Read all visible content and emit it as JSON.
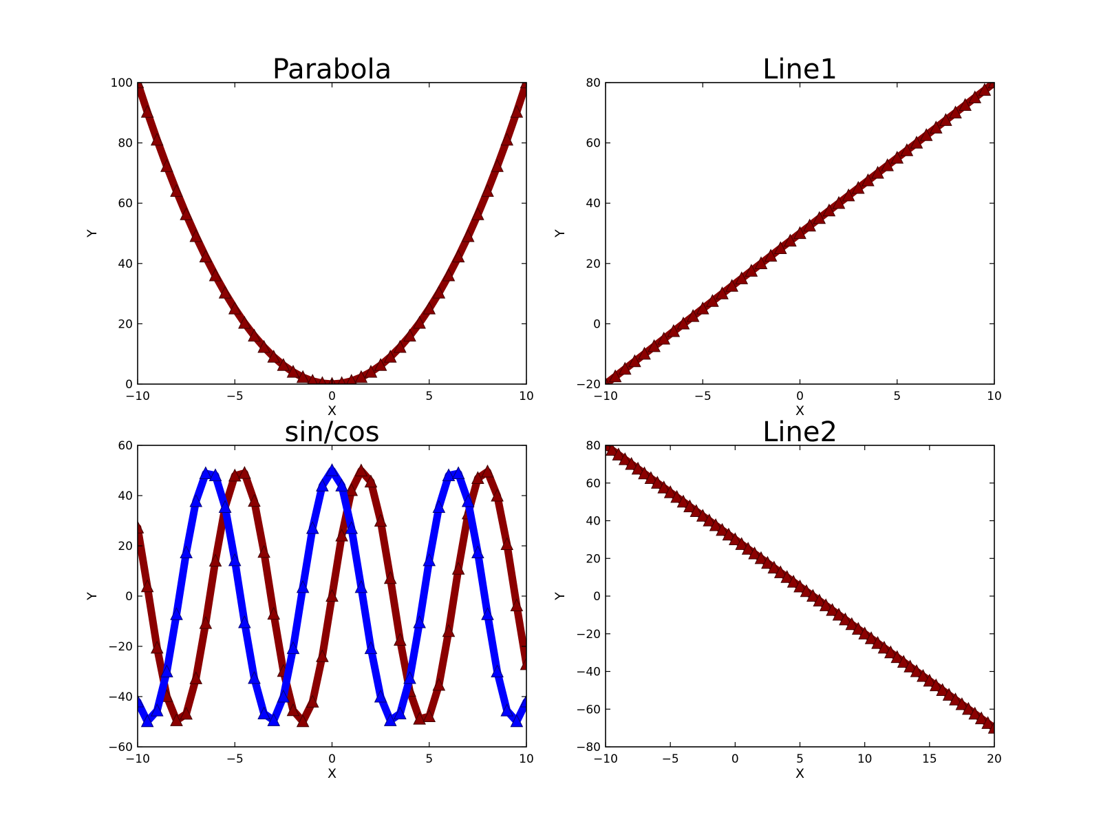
{
  "chart_data": [
    {
      "type": "line",
      "title": "Parabola",
      "xlabel": "X",
      "ylabel": "Y",
      "xlim": [
        -10,
        10
      ],
      "ylim": [
        0,
        100
      ],
      "xticks": [
        -10,
        -5,
        0,
        5,
        10
      ],
      "yticks": [
        0,
        20,
        40,
        60,
        80,
        100
      ],
      "xtick_labels": [
        "−10",
        "−5",
        "0",
        "5",
        "10"
      ],
      "ytick_labels": [
        "0",
        "20",
        "40",
        "60",
        "80",
        "100"
      ],
      "grid": false,
      "marker": "triangle",
      "series": [
        {
          "color": "#8b0000",
          "x": [
            -10,
            -9.5,
            -9,
            -8.5,
            -8,
            -7.5,
            -7,
            -6.5,
            -6,
            -5.5,
            -5,
            -4.5,
            -4,
            -3.5,
            -3,
            -2.5,
            -2,
            -1.5,
            -1,
            -0.5,
            0,
            0.5,
            1,
            1.5,
            2,
            2.5,
            3,
            3.5,
            4,
            4.5,
            5,
            5.5,
            6,
            6.5,
            7,
            7.5,
            8,
            8.5,
            9,
            9.5,
            10
          ],
          "y": [
            100,
            90.25,
            81,
            72.25,
            64,
            56.25,
            49,
            42.25,
            36,
            30.25,
            25,
            20.25,
            16,
            12.25,
            9,
            6.25,
            4,
            2.25,
            1,
            0.25,
            0,
            0.25,
            1,
            2.25,
            4,
            6.25,
            9,
            12.25,
            16,
            20.25,
            25,
            30.25,
            36,
            42.25,
            49,
            56.25,
            64,
            72.25,
            81,
            90.25,
            100
          ]
        }
      ]
    },
    {
      "type": "line",
      "title": "Line1",
      "xlabel": "X",
      "ylabel": "Y",
      "xlim": [
        -10,
        10
      ],
      "ylim": [
        -20,
        80
      ],
      "xticks": [
        -10,
        -5,
        0,
        5,
        10
      ],
      "yticks": [
        -20,
        0,
        20,
        40,
        60,
        80
      ],
      "xtick_labels": [
        "−10",
        "−5",
        "0",
        "5",
        "10"
      ],
      "ytick_labels": [
        "−20",
        "0",
        "20",
        "40",
        "60",
        "80"
      ],
      "grid": false,
      "marker": "triangle",
      "series": [
        {
          "color": "#8b0000",
          "x": [
            -10,
            -9.5,
            -9,
            -8.5,
            -8,
            -7.5,
            -7,
            -6.5,
            -6,
            -5.5,
            -5,
            -4.5,
            -4,
            -3.5,
            -3,
            -2.5,
            -2,
            -1.5,
            -1,
            -0.5,
            0,
            0.5,
            1,
            1.5,
            2,
            2.5,
            3,
            3.5,
            4,
            4.5,
            5,
            5.5,
            6,
            6.5,
            7,
            7.5,
            8,
            8.5,
            9,
            9.5,
            10
          ],
          "y": [
            -20,
            -17.5,
            -15,
            -12.5,
            -10,
            -7.5,
            -5,
            -2.5,
            0,
            2.5,
            5,
            7.5,
            10,
            12.5,
            15,
            17.5,
            20,
            22.5,
            25,
            27.5,
            30,
            32.5,
            35,
            37.5,
            40,
            42.5,
            45,
            47.5,
            50,
            52.5,
            55,
            57.5,
            60,
            62.5,
            65,
            67.5,
            70,
            72.5,
            75,
            77.5,
            80
          ]
        }
      ]
    },
    {
      "type": "line",
      "title": "sin/cos",
      "xlabel": "X",
      "ylabel": "Y",
      "xlim": [
        -10,
        10
      ],
      "ylim": [
        -60,
        60
      ],
      "xticks": [
        -10,
        -5,
        0,
        5,
        10
      ],
      "yticks": [
        -60,
        -40,
        -20,
        0,
        20,
        40,
        60
      ],
      "xtick_labels": [
        "−10",
        "−5",
        "0",
        "5",
        "10"
      ],
      "ytick_labels": [
        "−60",
        "−40",
        "−20",
        "0",
        "20",
        "40",
        "60"
      ],
      "grid": false,
      "marker": "triangle",
      "series": [
        {
          "color": "#8b0000",
          "x": [
            -10,
            -9.5,
            -9,
            -8.5,
            -8,
            -7.5,
            -7,
            -6.5,
            -6,
            -5.5,
            -5,
            -4.5,
            -4,
            -3.5,
            -3,
            -2.5,
            -2,
            -1.5,
            -1,
            -0.5,
            0,
            0.5,
            1,
            1.5,
            2,
            2.5,
            3,
            3.5,
            4,
            4.5,
            5,
            5.5,
            6,
            6.5,
            7,
            7.5,
            8,
            8.5,
            9,
            9.5,
            10
          ],
          "y": [
            27.2,
            3.8,
            -20.6,
            -39.9,
            -49.5,
            -46.9,
            -32.8,
            -10.8,
            14.0,
            35.4,
            47.9,
            48.9,
            37.8,
            17.5,
            -7.1,
            -29.9,
            -45.5,
            -49.9,
            -42.1,
            -24.0,
            0.0,
            24.0,
            42.1,
            49.9,
            45.5,
            29.9,
            7.1,
            -17.5,
            -37.8,
            -48.9,
            -47.9,
            -35.4,
            -14.0,
            10.8,
            32.8,
            46.9,
            49.5,
            39.9,
            20.6,
            -3.8,
            -27.2
          ]
        },
        {
          "color": "#0000ff",
          "x": [
            -10,
            -9.5,
            -9,
            -8.5,
            -8,
            -7.5,
            -7,
            -6.5,
            -6,
            -5.5,
            -5,
            -4.5,
            -4,
            -3.5,
            -3,
            -2.5,
            -2,
            -1.5,
            -1,
            -0.5,
            0,
            0.5,
            1,
            1.5,
            2,
            2.5,
            3,
            3.5,
            4,
            4.5,
            5,
            5.5,
            6,
            6.5,
            7,
            7.5,
            8,
            8.5,
            9,
            9.5,
            10
          ],
          "y": [
            -42.0,
            -49.9,
            -45.6,
            -30.1,
            -7.3,
            17.3,
            37.7,
            48.8,
            48.0,
            35.4,
            14.2,
            -10.5,
            -32.7,
            -46.8,
            -49.5,
            -40.1,
            -20.8,
            3.5,
            27.0,
            43.9,
            50.0,
            43.9,
            27.0,
            3.5,
            -20.8,
            -40.1,
            -49.5,
            -46.8,
            -32.7,
            -10.5,
            14.2,
            35.4,
            48.0,
            48.8,
            37.7,
            17.3,
            -7.3,
            -30.1,
            -45.6,
            -49.9,
            -42.0
          ]
        }
      ]
    },
    {
      "type": "line",
      "title": "Line2",
      "xlabel": "X",
      "ylabel": "Y",
      "xlim": [
        -10,
        20
      ],
      "ylim": [
        -80,
        80
      ],
      "xticks": [
        -10,
        -5,
        0,
        5,
        10,
        15,
        20
      ],
      "yticks": [
        -80,
        -60,
        -40,
        -20,
        0,
        20,
        40,
        60,
        80
      ],
      "xtick_labels": [
        "−10",
        "−5",
        "0",
        "5",
        "10",
        "15",
        "20"
      ],
      "ytick_labels": [
        "−80",
        "−60",
        "−40",
        "−20",
        "0",
        "20",
        "40",
        "60",
        "80"
      ],
      "grid": false,
      "marker": "triangle",
      "series": [
        {
          "color": "#8b0000",
          "x": [
            -10,
            -9.5,
            -9,
            -8.5,
            -8,
            -7.5,
            -7,
            -6.5,
            -6,
            -5.5,
            -5,
            -4.5,
            -4,
            -3.5,
            -3,
            -2.5,
            -2,
            -1.5,
            -1,
            -0.5,
            0,
            0.5,
            1,
            1.5,
            2,
            2.5,
            3,
            3.5,
            4,
            4.5,
            5,
            5.5,
            6,
            6.5,
            7,
            7.5,
            8,
            8.5,
            9,
            9.5,
            10,
            10.5,
            11,
            11.5,
            12,
            12.5,
            13,
            13.5,
            14,
            14.5,
            15,
            15.5,
            16,
            16.5,
            17,
            17.5,
            18,
            18.5,
            19,
            19.5,
            20
          ],
          "y": [
            80,
            77.5,
            75,
            72.5,
            70,
            67.5,
            65,
            62.5,
            60,
            57.5,
            55,
            52.5,
            50,
            47.5,
            45,
            42.5,
            40,
            37.5,
            35,
            32.5,
            30,
            27.5,
            25,
            22.5,
            20,
            17.5,
            15,
            12.5,
            10,
            7.5,
            5,
            2.5,
            0,
            -2.5,
            -5,
            -7.5,
            -10,
            -12.5,
            -15,
            -17.5,
            -20,
            -22.5,
            -25,
            -27.5,
            -30,
            -32.5,
            -35,
            -37.5,
            -40,
            -42.5,
            -45,
            -47.5,
            -50,
            -52.5,
            -55,
            -57.5,
            -60,
            -62.5,
            -65,
            -67.5,
            -70
          ]
        }
      ]
    }
  ]
}
